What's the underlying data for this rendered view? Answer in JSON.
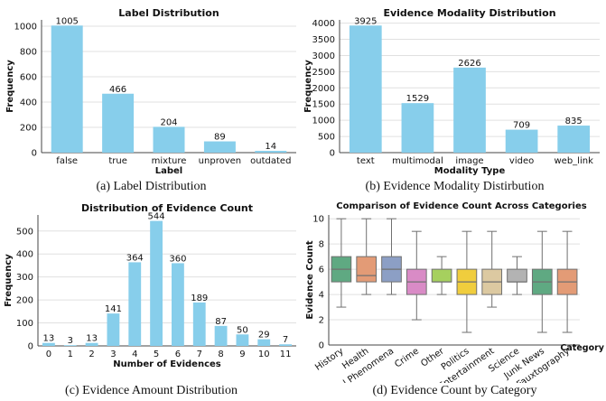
{
  "captions": {
    "a": "(a) Label Distribution",
    "b": "(b) Evidence Modality Distirbution",
    "c": "(c) Evidence Amount Distribution",
    "d": "(d) Evidence Count by Category"
  },
  "colors": {
    "bar": "#87CEEB",
    "grid": "#e0e0e0",
    "axis": "#444444"
  },
  "chart_data": [
    {
      "type": "bar",
      "title": "Label Distribution",
      "xlabel": "Label",
      "ylabel": "Frequency",
      "categories": [
        "false",
        "true",
        "mixture",
        "unproven",
        "outdated"
      ],
      "values": [
        1005,
        466,
        204,
        89,
        14
      ],
      "ylim": [
        0,
        1050
      ],
      "yticks": [
        0,
        200,
        400,
        600,
        800,
        1000
      ],
      "grid": true
    },
    {
      "type": "bar",
      "title": "Evidence Modality Distribution",
      "xlabel": "Modality Type",
      "ylabel": "Frequency",
      "categories": [
        "text",
        "multimodal",
        "image",
        "video",
        "web_link"
      ],
      "values": [
        3925,
        1529,
        2626,
        709,
        835
      ],
      "ylim": [
        0,
        4100
      ],
      "yticks": [
        0,
        500,
        1000,
        1500,
        2000,
        2500,
        3000,
        3500,
        4000
      ],
      "grid": true
    },
    {
      "type": "bar",
      "title": "Distribution of Evidence Count",
      "xlabel": "Number of Evidences",
      "ylabel": "Frequency",
      "categories": [
        "0",
        "1",
        "2",
        "3",
        "4",
        "5",
        "6",
        "7",
        "8",
        "9",
        "10",
        "11"
      ],
      "values": [
        13,
        3,
        13,
        141,
        364,
        544,
        360,
        189,
        87,
        50,
        29,
        7
      ],
      "ylim": [
        0,
        570
      ],
      "yticks": [
        0,
        100,
        200,
        300,
        400,
        500
      ],
      "grid": true
    },
    {
      "type": "box",
      "title": "Comparison of Evidence Count Across Categories",
      "xlabel": "Category",
      "ylabel": "Evidence Count",
      "ylim": [
        0,
        10.3
      ],
      "yticks": [
        0,
        2,
        4,
        6,
        8,
        10
      ],
      "grid": true,
      "categories": [
        "History",
        "Health",
        "Viral Phenomena",
        "Crime",
        "Other",
        "Politics",
        "Entertainment",
        "Science",
        "Junk News",
        "Fauxtography"
      ],
      "colors": [
        "#5fa982",
        "#e39b76",
        "#8c9fc5",
        "#d98bc6",
        "#a6d05e",
        "#f0cd3d",
        "#dcc9a1",
        "#b3b3b3",
        "#5fa982",
        "#e39b76"
      ],
      "boxes": [
        {
          "min": 3,
          "q1": 5,
          "median": 6,
          "q3": 7,
          "max": 10
        },
        {
          "min": 4,
          "q1": 5,
          "median": 5.5,
          "q3": 7,
          "max": 10
        },
        {
          "min": 4,
          "q1": 5,
          "median": 6,
          "q3": 7,
          "max": 10
        },
        {
          "min": 2,
          "q1": 4,
          "median": 5,
          "q3": 6,
          "max": 9
        },
        {
          "min": 4,
          "q1": 5,
          "median": 5,
          "q3": 6,
          "max": 7
        },
        {
          "min": 1,
          "q1": 4,
          "median": 5,
          "q3": 6,
          "max": 9
        },
        {
          "min": 3,
          "q1": 4,
          "median": 5,
          "q3": 6,
          "max": 9
        },
        {
          "min": 4,
          "q1": 5,
          "median": 5,
          "q3": 6,
          "max": 7
        },
        {
          "min": 1,
          "q1": 4,
          "median": 5,
          "q3": 6,
          "max": 9
        },
        {
          "min": 1,
          "q1": 4,
          "median": 5,
          "q3": 6,
          "max": 9
        }
      ]
    }
  ]
}
